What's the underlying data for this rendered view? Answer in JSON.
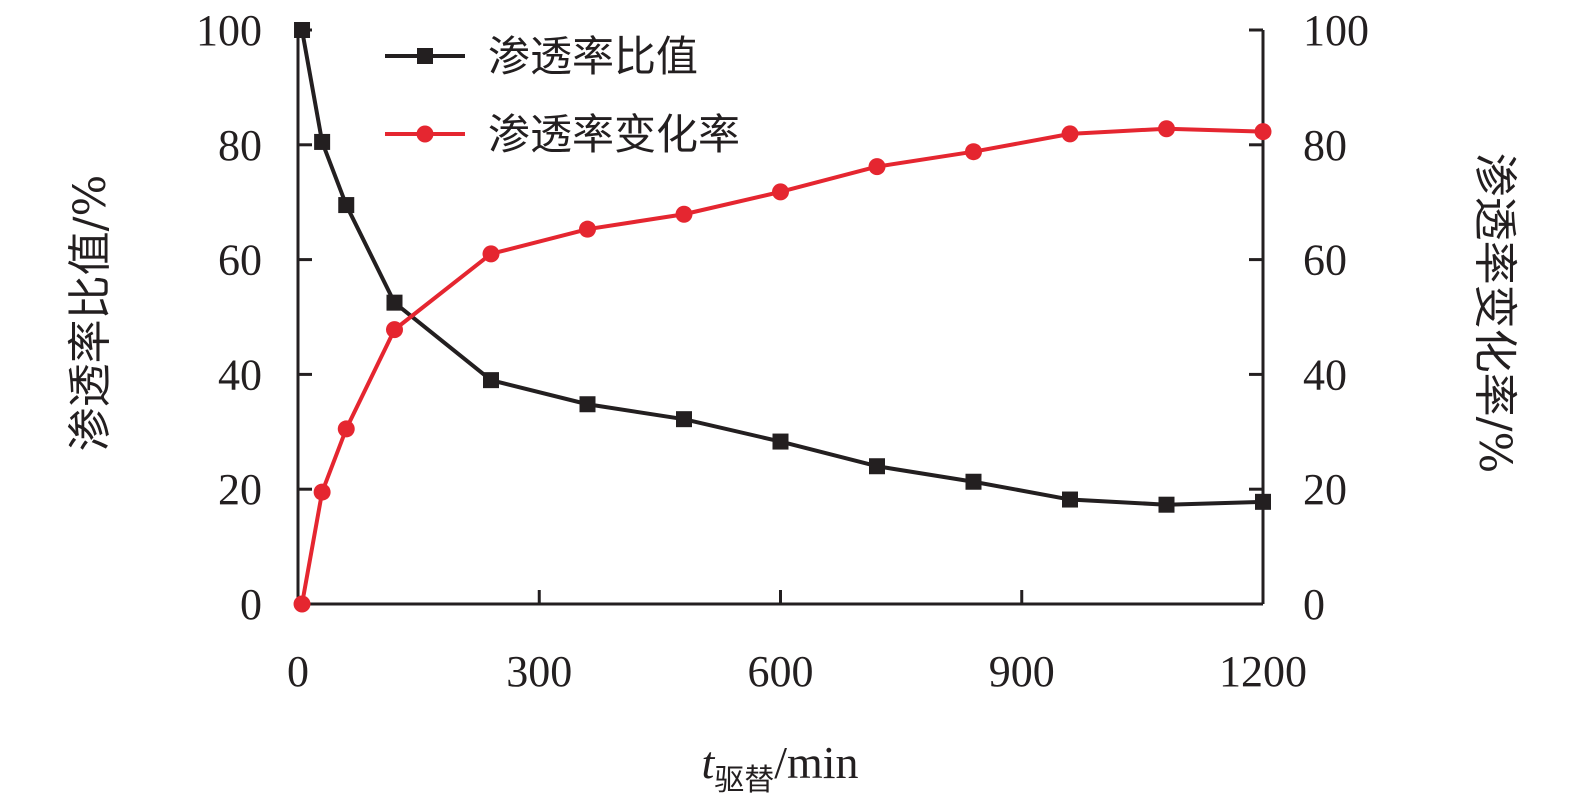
{
  "chart_data": {
    "type": "line",
    "x_label": {
      "main": "t",
      "subscript": "驱替",
      "unit": "/min"
    },
    "y_left_label": "渗透率比值/%",
    "y_right_label": "渗透率变化率/%",
    "x_range": [
      0,
      1200
    ],
    "y_left_range": [
      0,
      100
    ],
    "y_right_range": [
      0,
      100
    ],
    "x_ticks": [
      "0",
      "300",
      "600",
      "900",
      "1200"
    ],
    "y_left_ticks": [
      "0",
      "20",
      "40",
      "60",
      "80",
      "100"
    ],
    "y_right_ticks": [
      "0",
      "20",
      "40",
      "60",
      "80",
      "100"
    ],
    "legend_position": "top-left",
    "series": [
      {
        "name": "渗透率比值",
        "axis": "left",
        "color": "#231f20",
        "marker": "square",
        "x": [
          5,
          30,
          60,
          120,
          240,
          360,
          480,
          600,
          720,
          840,
          960,
          1080,
          1200
        ],
        "y": [
          100,
          80.5,
          69.5,
          52.5,
          39,
          34.8,
          32.2,
          28.3,
          24,
          21.3,
          18.2,
          17.3,
          17.8
        ]
      },
      {
        "name": "渗透率变化率",
        "axis": "right",
        "color": "#e52630",
        "marker": "circle",
        "x": [
          5,
          30,
          60,
          120,
          240,
          360,
          480,
          600,
          720,
          840,
          960,
          1080,
          1200
        ],
        "y": [
          0,
          19.5,
          30.5,
          47.8,
          61,
          65.3,
          67.9,
          71.8,
          76.2,
          78.8,
          81.9,
          82.8,
          82.3
        ]
      }
    ]
  }
}
